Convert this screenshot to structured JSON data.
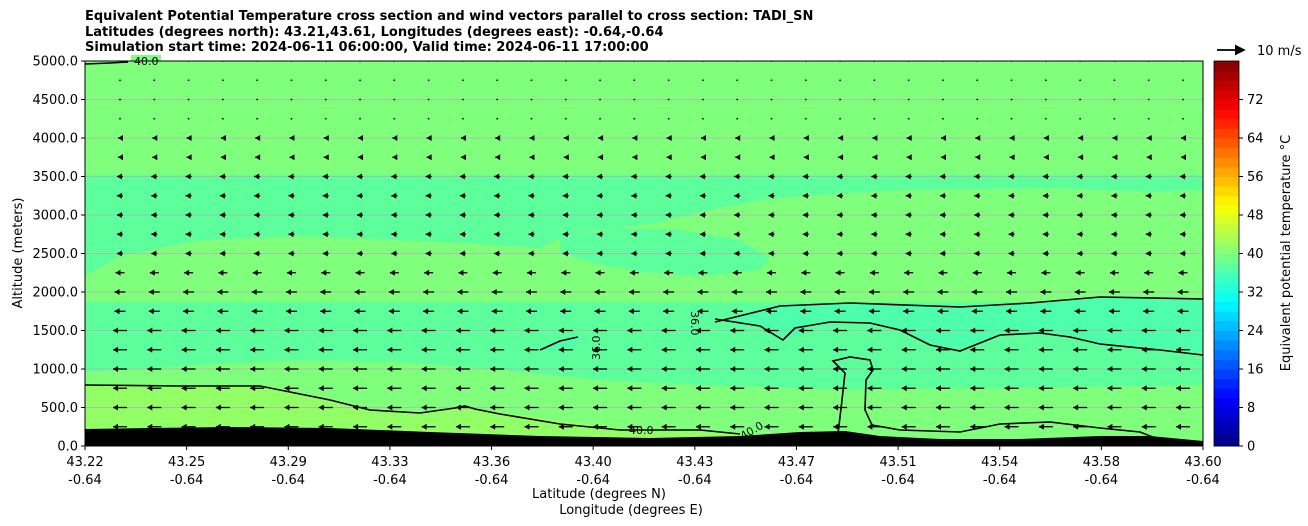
{
  "chart_data": {
    "type": "contourf",
    "title_lines": [
      "Equivalent Potential Temperature cross section and wind vectors parallel to cross section: TADI_SN",
      "Latitudes (degrees north): 43.21,43.61, Longitudes (degrees east): -0.64,-0.64",
      "Simulation start time: 2024-06-11 06:00:00, Valid time: 2024-06-11 17:00:00"
    ],
    "ylabel": "Altitude (meters)",
    "xlabel_lines": [
      "Latitude (degrees N)",
      "Longitude (degrees E)"
    ],
    "ylim": [
      0,
      5000
    ],
    "y_ticks": [
      "0.0",
      "500.0",
      "1000.0",
      "1500.0",
      "2000.0",
      "2500.0",
      "3000.0",
      "3500.0",
      "4000.0",
      "4500.0",
      "5000.0"
    ],
    "y_tick_values": [
      0,
      500,
      1000,
      1500,
      2000,
      2500,
      3000,
      3500,
      4000,
      4500,
      5000
    ],
    "x_ticks": [
      {
        "lat": "43.22",
        "lon": "-0.64"
      },
      {
        "lat": "43.25",
        "lon": "-0.64"
      },
      {
        "lat": "43.29",
        "lon": "-0.64"
      },
      {
        "lat": "43.33",
        "lon": "-0.64"
      },
      {
        "lat": "43.36",
        "lon": "-0.64"
      },
      {
        "lat": "43.40",
        "lon": "-0.64"
      },
      {
        "lat": "43.43",
        "lon": "-0.64"
      },
      {
        "lat": "43.47",
        "lon": "-0.64"
      },
      {
        "lat": "43.51",
        "lon": "-0.64"
      },
      {
        "lat": "43.54",
        "lon": "-0.64"
      },
      {
        "lat": "43.58",
        "lon": "-0.64"
      },
      {
        "lat": "43.60",
        "lon": "-0.64"
      }
    ],
    "grid": "horizontal",
    "colorbar": {
      "label": "Equivalent potential temperature $^\\circ$C",
      "label_display": "Equivalent potential temperature °C",
      "range": [
        0,
        80
      ],
      "tick_values": [
        0,
        8,
        16,
        24,
        32,
        40,
        48,
        56,
        64,
        72
      ],
      "ticks": [
        "0",
        "8",
        "16",
        "24",
        "32",
        "40",
        "48",
        "56",
        "64",
        "72"
      ],
      "colormap": "jet"
    },
    "contour_labels": [
      "40.0",
      "36.0",
      "36.0",
      "40.0",
      "40.0"
    ],
    "quiver_key": "10 m/s",
    "colors": {
      "theta_36_38": "#4dffaa",
      "theta_38_40": "#5cff9c",
      "theta_40_42": "#80ff7c",
      "theta_42_44": "#93ff66",
      "terrain": "#000000",
      "grid": "#b0b0b0"
    }
  }
}
